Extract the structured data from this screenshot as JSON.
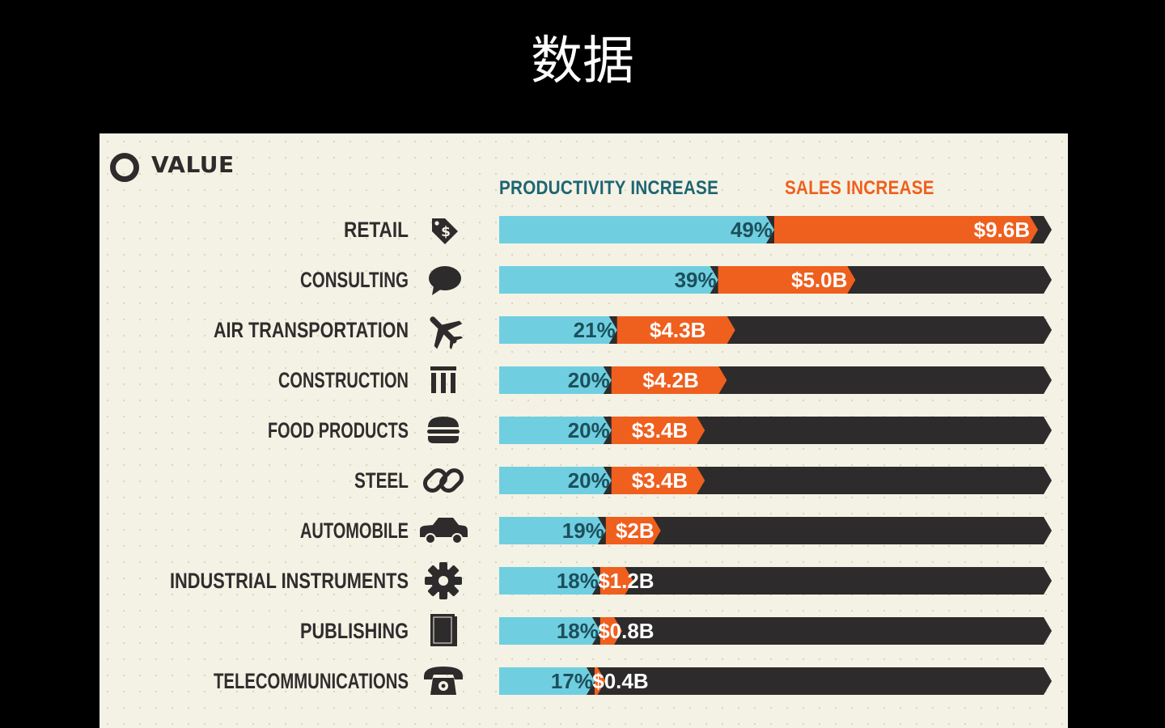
{
  "slide_title": "数据",
  "panel": {
    "heading": "VALUE",
    "background": "#f4f2e4"
  },
  "colors": {
    "productivity": "#6fcfe0",
    "sales": "#ef5f1e",
    "track": "#2d2b2b",
    "productivity_label_text": "#1d4f5c",
    "sales_label_text": "#ffffff"
  },
  "chart_data": {
    "type": "bar",
    "orientation": "horizontal",
    "stacked": true,
    "title": "VALUE",
    "legend": [
      "PRODUCTIVITY INCREASE",
      "SALES INCREASE"
    ],
    "legend_position": "top",
    "categories": [
      "RETAIL",
      "CONSULTING",
      "AIR TRANSPORTATION",
      "CONSTRUCTION",
      "FOOD PRODUCTS",
      "STEEL",
      "AUTOMOBILE",
      "INDUSTRIAL INSTRUMENTS",
      "PUBLISHING",
      "TELECOMMUNICATIONS"
    ],
    "icons": [
      "price-tag-icon",
      "speech-bubble-icon",
      "airplane-icon",
      "building-columns-icon",
      "burger-icon",
      "chain-link-icon",
      "car-icon",
      "gear-icon",
      "book-icon",
      "telephone-icon"
    ],
    "series": [
      {
        "name": "PRODUCTIVITY INCREASE",
        "unit": "%",
        "values": [
          49,
          39,
          21,
          20,
          20,
          20,
          19,
          18,
          18,
          17
        ],
        "labels": [
          "49%",
          "39%",
          "21%",
          "20%",
          "20%",
          "20%",
          "19%",
          "18%",
          "18%",
          "17%"
        ]
      },
      {
        "name": "SALES INCREASE",
        "unit": "$B",
        "values": [
          9.6,
          5.0,
          4.3,
          4.2,
          3.4,
          3.4,
          2,
          1.2,
          0.8,
          0.4
        ],
        "labels": [
          "$9.6B",
          "$5.0B",
          "$4.3B",
          "$4.2B",
          "$3.4B",
          "$3.4B",
          "$2B",
          "$1.2B",
          "$0.8B",
          "$0.4B"
        ]
      }
    ],
    "grid": false
  }
}
